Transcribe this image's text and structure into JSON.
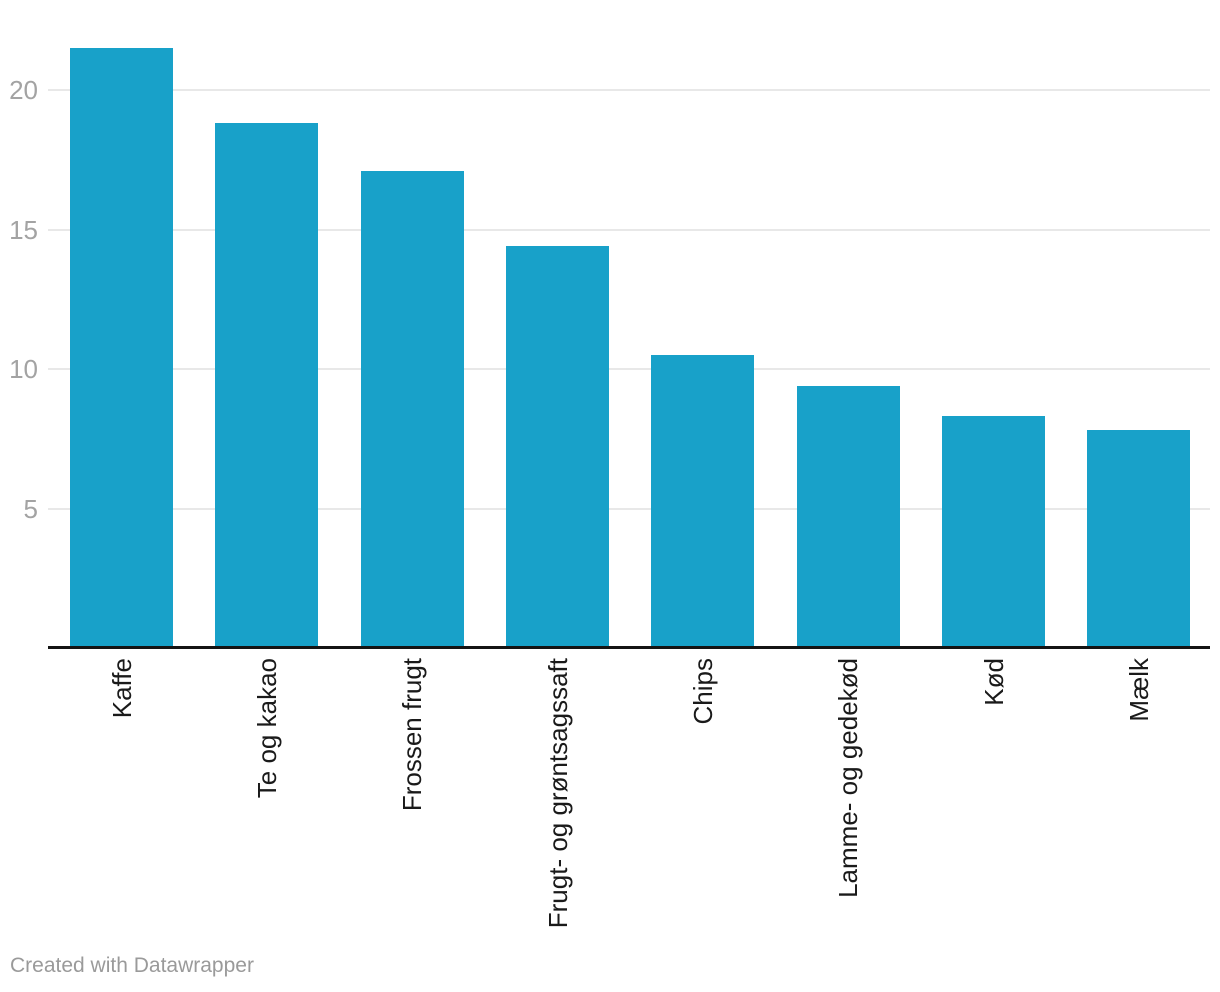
{
  "chart_data": {
    "type": "bar",
    "categories": [
      "Kaffe",
      "Te og kakao",
      "Frossen frugt",
      "Frugt- og grøntsagssaft",
      "Chips",
      "Lamme- og gedekød",
      "Kød",
      "Mælk"
    ],
    "values": [
      21.5,
      18.8,
      17.1,
      14.4,
      10.5,
      9.4,
      8.3,
      7.8
    ],
    "title": "",
    "xlabel": "",
    "ylabel": "",
    "ylim": [
      0,
      21.6
    ],
    "yticks": [
      5,
      10,
      15,
      20
    ],
    "grid": true,
    "legend": "none",
    "bar_color": "#18a1c9"
  },
  "footer": {
    "credit": "Created with Datawrapper"
  },
  "colors": {
    "background": "#ffffff",
    "bar": "#18a1c9",
    "grid": "#e8e8e8",
    "axis": "#141414",
    "tick_label": "#a3a3a3",
    "category_label": "#1a1a1a",
    "credit": "#9a9a9a"
  }
}
